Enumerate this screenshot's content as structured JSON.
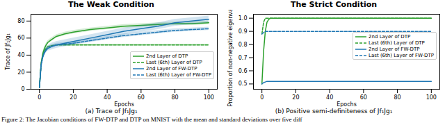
{
  "caption": "Figure 2: The Jacobian conditions of FW-DTP and DTP on MNIST with the mean and standard deviations over five diff",
  "chart_data": [
    {
      "type": "line",
      "title": "The Weak Condition",
      "subtitle": "(a) Trace of Jf₁Jg₁",
      "x_label": "Epochs",
      "y_label": "Trace of Jf₁Jg₁",
      "x": [
        0,
        1,
        2,
        3,
        4,
        5,
        7,
        10,
        15,
        20,
        30,
        40,
        50,
        60,
        70,
        80,
        90,
        100
      ],
      "xlim": [
        -5,
        105
      ],
      "xticks": [
        0,
        20,
        40,
        60,
        80,
        100
      ],
      "ylim": [
        0,
        88
      ],
      "yticks": [
        0,
        20,
        40,
        60,
        80
      ],
      "legend": "lower right",
      "series": [
        {
          "name": "2nd Layer of DTP",
          "color": "#2ca02c",
          "line_style": "solid",
          "values": [
            2,
            30,
            42,
            48,
            52,
            55,
            58,
            62,
            65,
            67,
            70,
            72,
            74,
            75,
            76,
            77,
            77,
            78
          ],
          "std": [
            1,
            2,
            2,
            2,
            2,
            2,
            2,
            2,
            2,
            2,
            2,
            2,
            2,
            2,
            2,
            2,
            2,
            2
          ]
        },
        {
          "name": "Last (6th) Layer of DTP",
          "color": "#2ca02c",
          "line_style": "dashed",
          "values": [
            2,
            30,
            40,
            45,
            48,
            50,
            51,
            52,
            52,
            52,
            52,
            52,
            52,
            52,
            52,
            52,
            52,
            52
          ],
          "std": [
            1,
            1,
            1,
            1,
            1,
            1,
            1,
            1,
            1,
            1,
            1,
            1,
            1,
            1,
            1,
            1,
            1,
            1
          ]
        },
        {
          "name": "2nd Layer of FW-DTP",
          "color": "#1f77b4",
          "line_style": "solid",
          "values": [
            2,
            28,
            38,
            43,
            46,
            48,
            50,
            52,
            54,
            56,
            60,
            64,
            68,
            71,
            74,
            78,
            80,
            82
          ],
          "std": [
            1,
            3,
            3,
            3,
            3,
            3,
            4,
            4,
            4,
            4,
            4,
            4,
            4,
            4,
            4,
            4,
            4,
            4
          ]
        },
        {
          "name": "Last (6th) Layer of FW-DTP",
          "color": "#1f77b4",
          "line_style": "dashed",
          "values": [
            2,
            28,
            38,
            43,
            46,
            48,
            50,
            52,
            53,
            54,
            57,
            60,
            63,
            65,
            67,
            69,
            70,
            71
          ],
          "std": [
            1,
            2,
            2,
            2,
            2,
            2,
            2,
            2,
            2,
            2,
            2,
            2,
            2,
            2,
            2,
            2,
            2,
            2
          ]
        }
      ]
    },
    {
      "type": "line",
      "title": "The Strict Condition",
      "subtitle": "(b) Positive semi-definiteness of Jf₁Jg₁",
      "x_label": "Epochs",
      "y_label": "Proportion of non-negative eigenvalues",
      "x": [
        0,
        1,
        2,
        3,
        4,
        5,
        7,
        10,
        15,
        20,
        30,
        40,
        50,
        60,
        70,
        80,
        90,
        100
      ],
      "xlim": [
        -5,
        105
      ],
      "xticks": [
        0,
        20,
        40,
        60,
        80,
        100
      ],
      "ylim": [
        0.46,
        1.03
      ],
      "yticks": [
        0.5,
        0.6,
        0.7,
        0.8,
        0.9,
        {
          "value": 1,
          "label": "1.0"
        }
      ],
      "legend": "center right",
      "series": [
        {
          "name": "2nd Layer of DTP",
          "color": "#2ca02c",
          "line_style": "solid",
          "values": [
            0.5,
            0.75,
            0.9,
            0.97,
            0.99,
            1,
            1,
            1,
            1,
            1,
            1,
            1,
            1,
            1,
            1,
            1,
            1,
            1
          ]
        },
        {
          "name": "Last (6th) Layer of DTP",
          "color": "#2ca02c",
          "line_style": "dashed",
          "values": [
            0.88,
            0.97,
            1,
            1,
            1,
            1,
            1,
            1,
            1,
            1,
            1,
            1,
            1,
            1,
            1,
            1,
            1,
            1
          ]
        },
        {
          "name": "2nd Layer of FW-DTP",
          "color": "#1f77b4",
          "line_style": "solid",
          "values": [
            0.5,
            0.51,
            0.515,
            0.52,
            0.52,
            0.52,
            0.52,
            0.52,
            0.52,
            0.52,
            0.52,
            0.52,
            0.52,
            0.52,
            0.52,
            0.52,
            0.52,
            0.52
          ]
        },
        {
          "name": "Last (6th) Layer of FW-DTP",
          "color": "#1f77b4",
          "line_style": "dashed",
          "values": [
            0.88,
            0.89,
            0.9,
            0.9,
            0.9,
            0.9,
            0.9,
            0.9,
            0.9,
            0.9,
            0.9,
            0.9,
            0.9,
            0.9,
            0.9,
            0.9,
            0.9,
            0.9
          ]
        }
      ]
    }
  ]
}
